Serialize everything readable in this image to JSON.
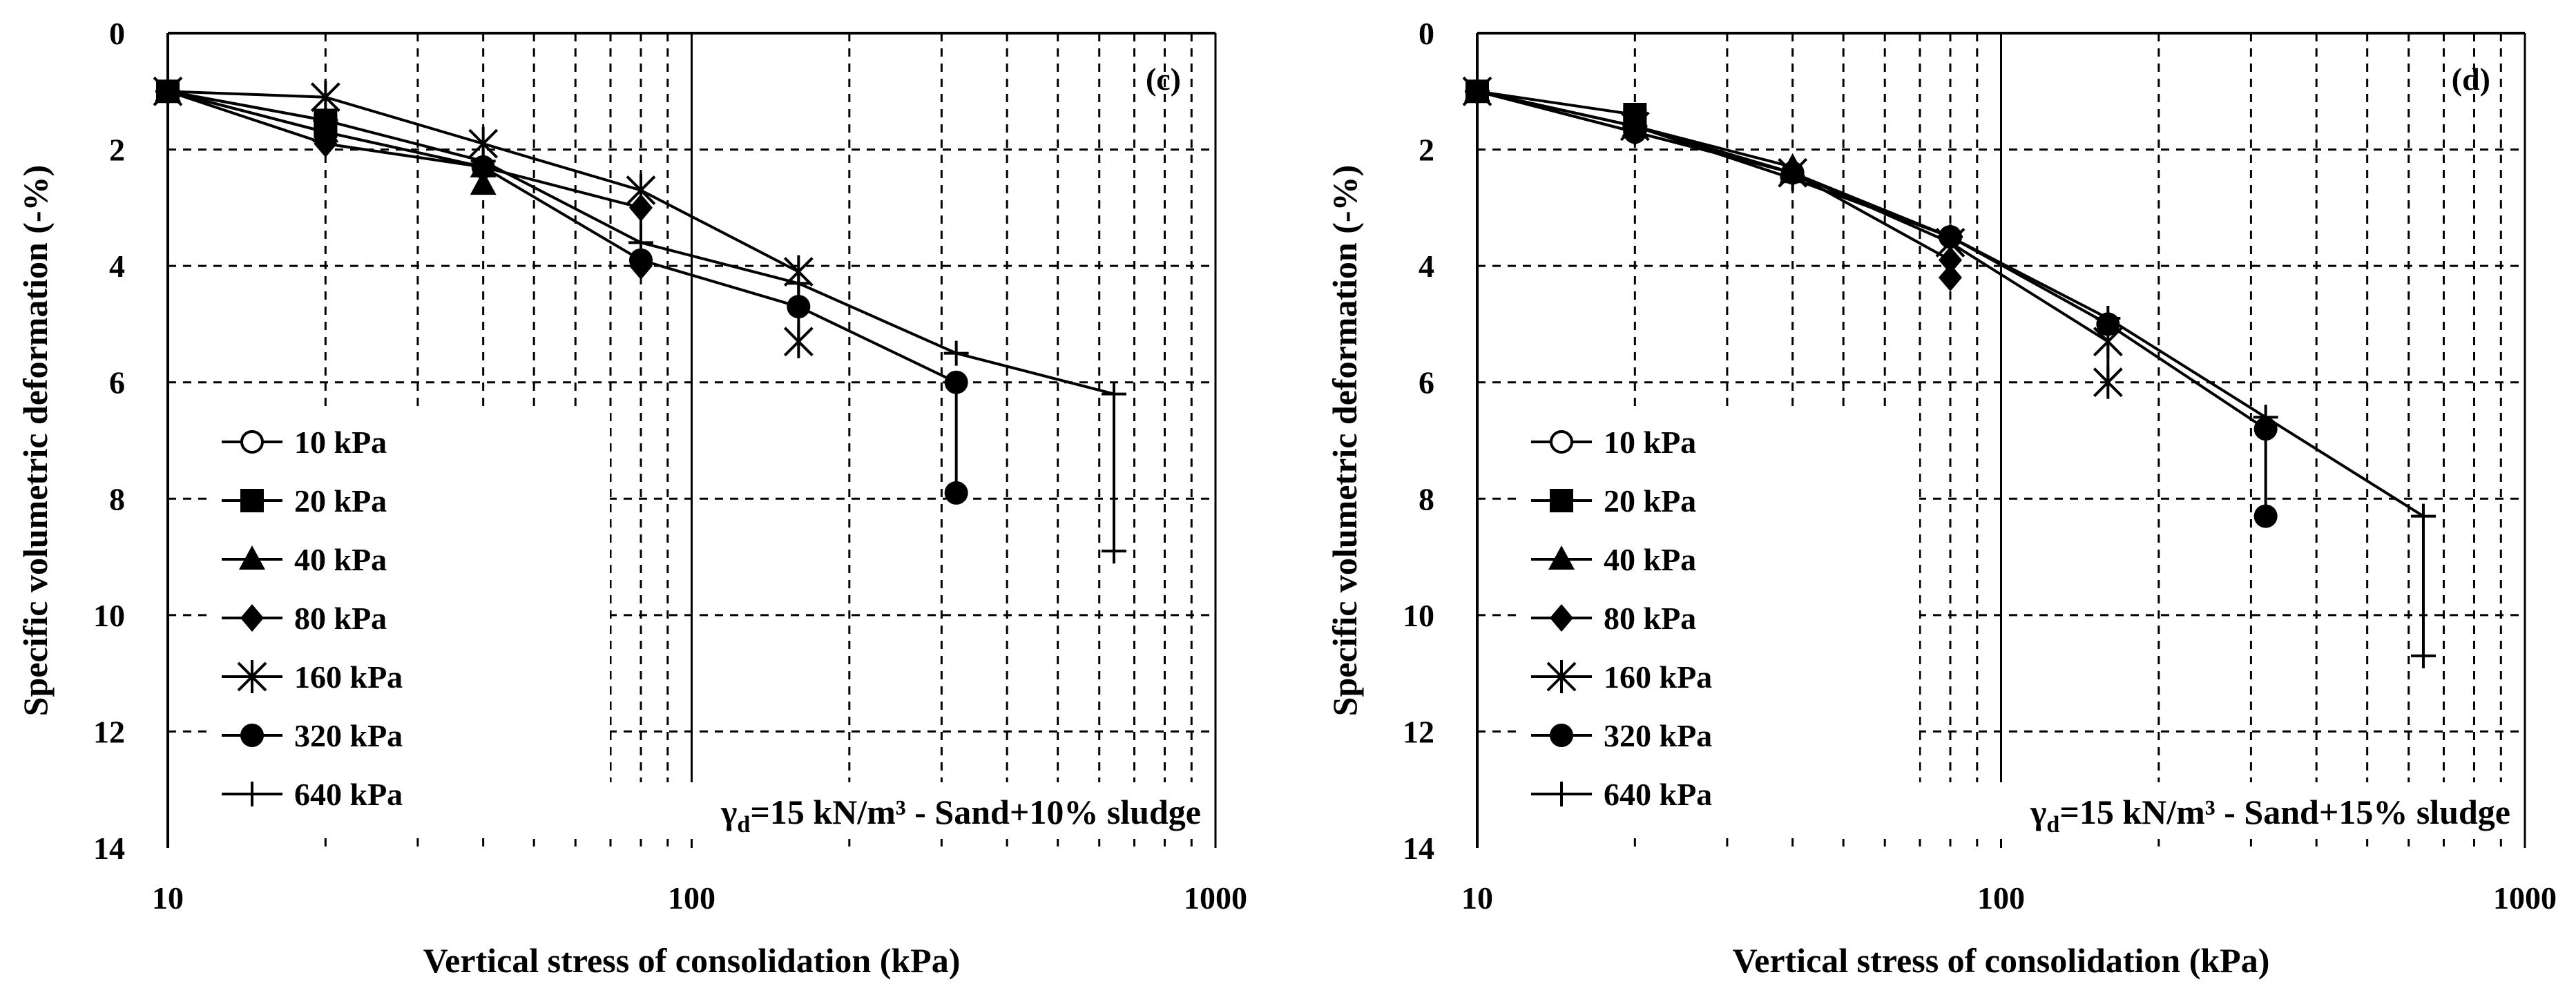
{
  "chart_data": [
    {
      "type": "line",
      "panel_label": "(c)",
      "annotation": {
        "symbol": "γ",
        "subscript": "d",
        "text": "=15 kN/m³ - Sand+10% sludge"
      },
      "xlabel": "Vertical stress of consolidation (kPa)",
      "ylabel": "Specific volumetric deformation (-%)",
      "xscale": "log",
      "xlim": [
        10,
        1000
      ],
      "ylim": [
        0,
        14
      ],
      "y_inverted": true,
      "x_ticks": [
        "10",
        "100",
        "1000"
      ],
      "y_ticks": [
        "0",
        "2",
        "4",
        "6",
        "8",
        "10",
        "12",
        "14"
      ],
      "grid": "dashed",
      "legend_position": "left",
      "series": [
        {
          "name": "10 kPa",
          "marker": "circle-open",
          "x": [
            10
          ],
          "y": [
            1.0
          ]
        },
        {
          "name": "20 kPa",
          "marker": "square",
          "x": [
            10,
            20,
            20
          ],
          "y": [
            1.0,
            1.5,
            1.6
          ]
        },
        {
          "name": "40 kPa",
          "marker": "triangle",
          "x": [
            10,
            20,
            40,
            40
          ],
          "y": [
            1.0,
            1.7,
            2.3,
            2.6
          ]
        },
        {
          "name": "80 kPa",
          "marker": "diamond",
          "x": [
            10,
            20,
            40,
            80,
            80
          ],
          "y": [
            1.0,
            1.9,
            2.3,
            3.0,
            4.0
          ]
        },
        {
          "name": "160 kPa",
          "marker": "asterisk",
          "x": [
            10,
            20,
            40,
            80,
            160,
            160
          ],
          "y": [
            1.0,
            1.1,
            1.9,
            2.7,
            4.1,
            5.3
          ]
        },
        {
          "name": "320 kPa",
          "marker": "circle",
          "x": [
            10,
            20,
            40,
            80,
            160,
            320,
            320
          ],
          "y": [
            1.0,
            1.7,
            2.3,
            3.9,
            4.7,
            6.0,
            7.9
          ]
        },
        {
          "name": "640 kPa",
          "marker": "plus",
          "x": [
            10,
            20,
            40,
            80,
            160,
            320,
            640,
            640
          ],
          "y": [
            1.0,
            1.5,
            2.2,
            3.6,
            4.3,
            5.5,
            6.2,
            8.9
          ]
        }
      ]
    },
    {
      "type": "line",
      "panel_label": "(d)",
      "annotation": {
        "symbol": "γ",
        "subscript": "d",
        "text": "=15 kN/m³ - Sand+15% sludge"
      },
      "xlabel": "Vertical stress of consolidation (kPa)",
      "ylabel": "Specific volumetric deformation (-%)",
      "xscale": "log",
      "xlim": [
        10,
        1000
      ],
      "ylim": [
        0,
        14
      ],
      "y_inverted": true,
      "x_ticks": [
        "10",
        "100",
        "1000"
      ],
      "y_ticks": [
        "0",
        "2",
        "4",
        "6",
        "8",
        "10",
        "12",
        "14"
      ],
      "grid": "dashed",
      "legend_position": "left",
      "series": [
        {
          "name": "10 kPa",
          "marker": "circle-open",
          "x": [
            10
          ],
          "y": [
            1.0
          ]
        },
        {
          "name": "20 kPa",
          "marker": "square",
          "x": [
            10,
            20,
            20
          ],
          "y": [
            1.0,
            1.4,
            1.5
          ]
        },
        {
          "name": "40 kPa",
          "marker": "triangle",
          "x": [
            10,
            20,
            40,
            40
          ],
          "y": [
            1.0,
            1.6,
            2.3,
            2.4
          ]
        },
        {
          "name": "80 kPa",
          "marker": "diamond",
          "x": [
            10,
            20,
            40,
            80,
            80
          ],
          "y": [
            1.0,
            1.7,
            2.4,
            3.9,
            4.2
          ]
        },
        {
          "name": "160 kPa",
          "marker": "asterisk",
          "x": [
            10,
            20,
            40,
            80,
            160,
            160
          ],
          "y": [
            1.0,
            1.6,
            2.4,
            3.6,
            5.3,
            6.0
          ]
        },
        {
          "name": "320 kPa",
          "marker": "circle",
          "x": [
            10,
            20,
            40,
            80,
            160,
            320,
            320
          ],
          "y": [
            1.0,
            1.7,
            2.4,
            3.5,
            5.0,
            6.8,
            8.3
          ]
        },
        {
          "name": "640 kPa",
          "marker": "plus",
          "x": [
            10,
            20,
            40,
            80,
            160,
            320,
            640,
            640
          ],
          "y": [
            1.0,
            1.6,
            2.5,
            3.5,
            4.9,
            6.6,
            8.3,
            10.7
          ]
        }
      ]
    }
  ]
}
